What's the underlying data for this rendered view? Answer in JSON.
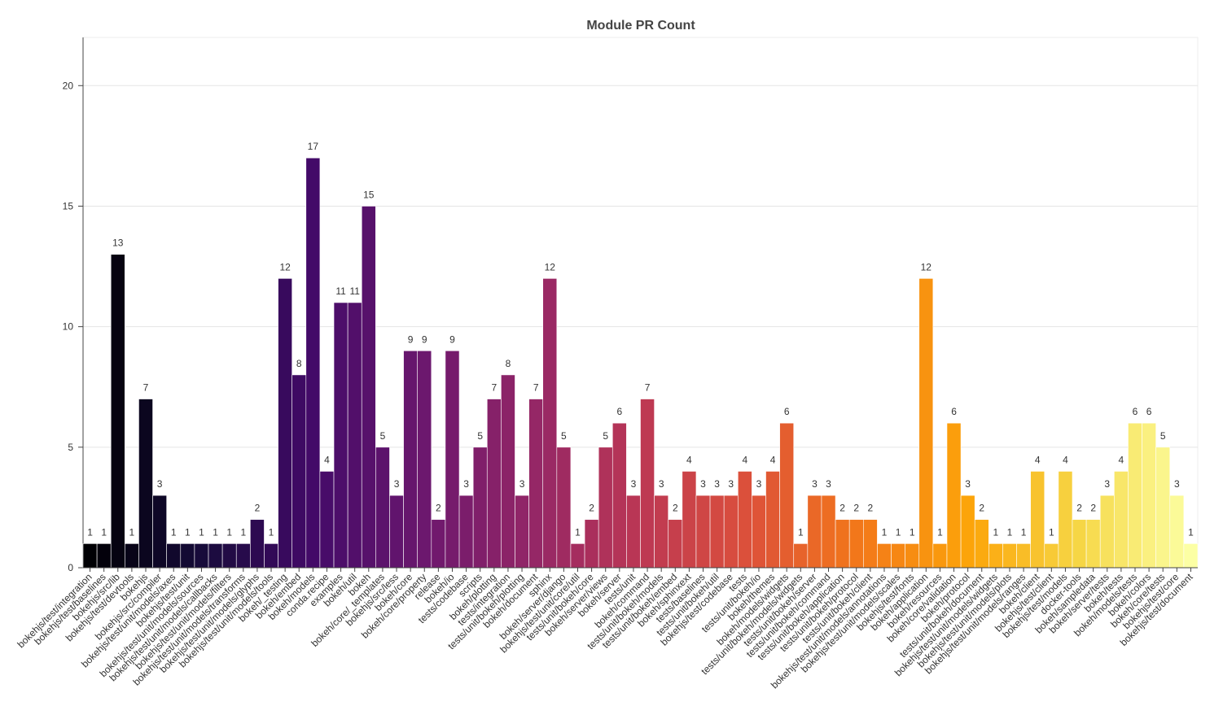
{
  "chart_data": {
    "type": "bar",
    "title": "Module PR Count",
    "categories": [
      "bokehjs/test/integration",
      "bokehjs/test/baselines",
      "bokehjs/src/lib",
      "bokehjs/test/devtools",
      "bokehjs",
      "bokehjs/src/compiler",
      "bokehjs/test/unit/models/axes",
      "bokehjs/test/unit",
      "bokehjs/test/unit/models/sources",
      "bokehjs/test/unit/models/callbacks",
      "bokehjs/test/unit/models/filters",
      "bokehjs/test/unit/models/transforms",
      "bokehjs/test/unit/models/glyphs",
      "bokehjs/test/unit/models/tools",
      "bokeh/_testing",
      "bokeh/embed",
      "bokeh/models",
      "conda.recipe",
      "examples",
      "bokeh/util",
      "bokeh",
      "bokeh/core/_templates",
      "bokehjs/src/less",
      "bokeh/core",
      "bokeh/core/property",
      "release",
      "bokeh/io",
      "tests/codebase",
      "scripts",
      "bokeh/plotting",
      "tests/integration",
      "tests/unit/bokeh/plotting",
      "bokeh/document",
      "sphinx",
      "bokeh/server/django",
      "bokehjs/test/unit/core/util",
      "tests/unit/bokeh/core",
      "bokeh/server/views",
      "bokeh/server",
      "tests/unit",
      "bokeh/command",
      "tests/unit/bokeh/models",
      "tests/unit/bokeh/embed",
      "bokeh/sphinxext",
      "tests/baselines",
      "tests/unit/bokeh/util",
      "bokehjs/test/codebase",
      "tests",
      "tests/unit/bokeh/io",
      "bokeh/themes",
      "bokeh/models/widgets",
      "tests/unit/bokeh/models/widgets",
      "tests/unit/bokeh/server",
      "tests/unit/bokeh/command",
      "tests/unit/bokeh/application",
      "tests/unit/bokeh/protocol",
      "tests/unit/bokeh/client",
      "bokehjs/test/unit/models/annotations",
      "bokehjs/test/unit/models/scales",
      "bokehjs/test/fonts",
      "bokeh/application",
      "bokeh/resources",
      "bokeh/core/validation",
      "bokeh/protocol",
      "tests/unit/bokeh/document",
      "bokehjs/test/unit/models/widgets",
      "bokehjs/test/unit/models/plots",
      "bokehjs/test/unit/models/ranges",
      "bokeh/client",
      "bokehjs/test/client",
      "bokehjs/test/models",
      "docker-tools",
      "bokeh/sampledata",
      "bokeh/server/tests",
      "bokeh/tests",
      "bokeh/models/tests",
      "bokeh/colors",
      "bokeh/core/tests",
      "bokehjs/test/core",
      "bokehjs/test/document"
    ],
    "values": [
      1,
      1,
      13,
      1,
      7,
      3,
      1,
      1,
      1,
      1,
      1,
      1,
      2,
      1,
      12,
      8,
      17,
      4,
      11,
      11,
      15,
      5,
      3,
      9,
      9,
      2,
      9,
      3,
      5,
      7,
      8,
      3,
      7,
      12,
      5,
      1,
      2,
      5,
      6,
      3,
      7,
      3,
      2,
      4,
      3,
      3,
      3,
      4,
      3,
      4,
      6,
      1,
      3,
      3,
      2,
      2,
      2,
      1,
      1,
      1,
      12,
      1,
      6,
      3,
      2,
      1,
      1,
      1,
      4,
      1,
      4,
      2,
      2,
      3,
      4,
      6,
      6,
      5,
      3,
      1
    ],
    "palette": [
      "#000004",
      "#160b39",
      "#420a68",
      "#6a176e",
      "#932667",
      "#bc3754",
      "#dd513a",
      "#f37819",
      "#fca50a",
      "#f6d746",
      "#fcffa4"
    ],
    "ylim": [
      0,
      22
    ],
    "yticks": [
      0,
      5,
      10,
      15,
      20
    ],
    "grid": true
  }
}
